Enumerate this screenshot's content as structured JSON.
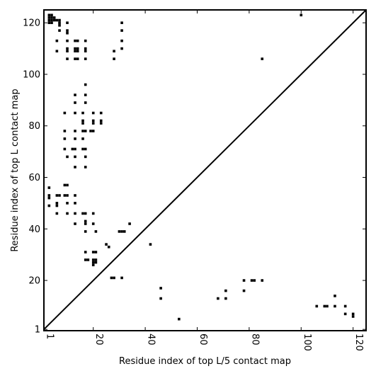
{
  "chart_data": {
    "type": "scatter",
    "title": "",
    "xlabel": "Residue index of top L/5 contact map",
    "ylabel": "Residue index of top L contact map",
    "xlim": [
      1,
      125
    ],
    "ylim": [
      0.5,
      125
    ],
    "xticks": [
      1,
      20,
      40,
      60,
      80,
      100,
      120
    ],
    "xtick_labels": [
      "1",
      "20",
      "40",
      "60",
      "80",
      "100",
      "120"
    ],
    "xtick_rotation": "vertical",
    "yticks": [
      1,
      20,
      40,
      60,
      80,
      100,
      120
    ],
    "yticks_labels": [
      "1",
      "20",
      "40",
      "60",
      "80",
      "100",
      "120"
    ],
    "grid": false,
    "marker": "square",
    "marker_color": "#000000",
    "diagonal": {
      "from": [
        1,
        1
      ],
      "to": [
        125,
        125
      ],
      "color": "#000000"
    },
    "points": [
      [
        3,
        120
      ],
      [
        3,
        121
      ],
      [
        3,
        122
      ],
      [
        3,
        123
      ],
      [
        4,
        120
      ],
      [
        4,
        121
      ],
      [
        4,
        122
      ],
      [
        4,
        123
      ],
      [
        5,
        121
      ],
      [
        5,
        122
      ],
      [
        6,
        121
      ],
      [
        6,
        113
      ],
      [
        6,
        109
      ],
      [
        7,
        119
      ],
      [
        7,
        120
      ],
      [
        7,
        121
      ],
      [
        7,
        117
      ],
      [
        10,
        120
      ],
      [
        10,
        117
      ],
      [
        10,
        116
      ],
      [
        10,
        113
      ],
      [
        10,
        110
      ],
      [
        10,
        109
      ],
      [
        10,
        106
      ],
      [
        13,
        113
      ],
      [
        13,
        110
      ],
      [
        13,
        109
      ],
      [
        13,
        106
      ],
      [
        14,
        113
      ],
      [
        14,
        110
      ],
      [
        14,
        109
      ],
      [
        14,
        106
      ],
      [
        17,
        113
      ],
      [
        17,
        110
      ],
      [
        17,
        109
      ],
      [
        17,
        106
      ],
      [
        28,
        109
      ],
      [
        28,
        106
      ],
      [
        31,
        120
      ],
      [
        31,
        117
      ],
      [
        31,
        113
      ],
      [
        31,
        110
      ],
      [
        85,
        106
      ],
      [
        100,
        123
      ],
      [
        17,
        96
      ],
      [
        13,
        92
      ],
      [
        17,
        92
      ],
      [
        13,
        89
      ],
      [
        17,
        89
      ],
      [
        9,
        85
      ],
      [
        13,
        85
      ],
      [
        16,
        85
      ],
      [
        20,
        85
      ],
      [
        23,
        85
      ],
      [
        16,
        82
      ],
      [
        16,
        81
      ],
      [
        20,
        82
      ],
      [
        20,
        81
      ],
      [
        23,
        82
      ],
      [
        23,
        81
      ],
      [
        9,
        78
      ],
      [
        13,
        78
      ],
      [
        16,
        78
      ],
      [
        17,
        78
      ],
      [
        19,
        78
      ],
      [
        20,
        78
      ],
      [
        9,
        75
      ],
      [
        13,
        75
      ],
      [
        16,
        75
      ],
      [
        9,
        71
      ],
      [
        12,
        71
      ],
      [
        13,
        71
      ],
      [
        16,
        71
      ],
      [
        17,
        71
      ],
      [
        10,
        68
      ],
      [
        13,
        68
      ],
      [
        17,
        68
      ],
      [
        13,
        64
      ],
      [
        17,
        64
      ],
      [
        9,
        57
      ],
      [
        10,
        57
      ],
      [
        3,
        56
      ],
      [
        3,
        53
      ],
      [
        3,
        52
      ],
      [
        6,
        53
      ],
      [
        7,
        53
      ],
      [
        9,
        53
      ],
      [
        10,
        53
      ],
      [
        13,
        53
      ],
      [
        6,
        50
      ],
      [
        6,
        49
      ],
      [
        10,
        50
      ],
      [
        13,
        50
      ],
      [
        3,
        49
      ],
      [
        6,
        46
      ],
      [
        10,
        46
      ],
      [
        13,
        46
      ],
      [
        16,
        46
      ],
      [
        17,
        46
      ],
      [
        20,
        46
      ],
      [
        17,
        43
      ],
      [
        17,
        42
      ],
      [
        13,
        42
      ],
      [
        20,
        42
      ],
      [
        34,
        42
      ],
      [
        17,
        39
      ],
      [
        21,
        39
      ],
      [
        30,
        39
      ],
      [
        31,
        39
      ],
      [
        32,
        39
      ],
      [
        25,
        34
      ],
      [
        26,
        33
      ],
      [
        42,
        34
      ],
      [
        17,
        31
      ],
      [
        20,
        31
      ],
      [
        21,
        31
      ],
      [
        17,
        28
      ],
      [
        18,
        28
      ],
      [
        20,
        28
      ],
      [
        21,
        28
      ],
      [
        20,
        27
      ],
      [
        21,
        27
      ],
      [
        20,
        26
      ],
      [
        27,
        21
      ],
      [
        28,
        21
      ],
      [
        31,
        21
      ],
      [
        78,
        20
      ],
      [
        81,
        20
      ],
      [
        82,
        20
      ],
      [
        85,
        20
      ],
      [
        71,
        16
      ],
      [
        78,
        16
      ],
      [
        46,
        17
      ],
      [
        46,
        13
      ],
      [
        68,
        13
      ],
      [
        71,
        13
      ],
      [
        53,
        5
      ],
      [
        106,
        10
      ],
      [
        109,
        10
      ],
      [
        110,
        10
      ],
      [
        113,
        10
      ],
      [
        117,
        10
      ],
      [
        113,
        14
      ],
      [
        117,
        7
      ],
      [
        120,
        6
      ],
      [
        120,
        7
      ]
    ]
  }
}
